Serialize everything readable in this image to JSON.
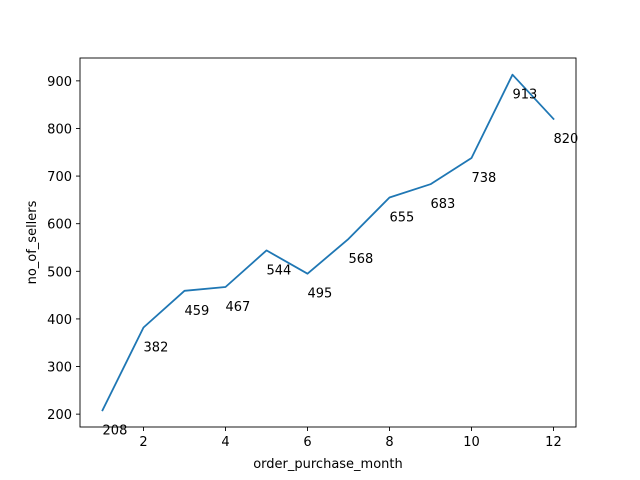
{
  "chart_data": {
    "type": "line",
    "title": "",
    "xlabel": "order_purchase_month",
    "ylabel": "no_of_sellers",
    "x": [
      1,
      2,
      3,
      4,
      5,
      6,
      7,
      8,
      9,
      10,
      11,
      12
    ],
    "series": [
      {
        "values": [
          208,
          382,
          459,
          467,
          544,
          495,
          568,
          655,
          683,
          738,
          913,
          820
        ]
      }
    ],
    "xticks": [
      2,
      4,
      6,
      8,
      10,
      12
    ],
    "yticks": [
      200,
      300,
      400,
      500,
      600,
      700,
      800,
      900
    ],
    "xlim": [
      0.45,
      12.55
    ],
    "ylim": [
      173,
      948
    ],
    "grid": false,
    "line_color": "#1f77b4"
  }
}
